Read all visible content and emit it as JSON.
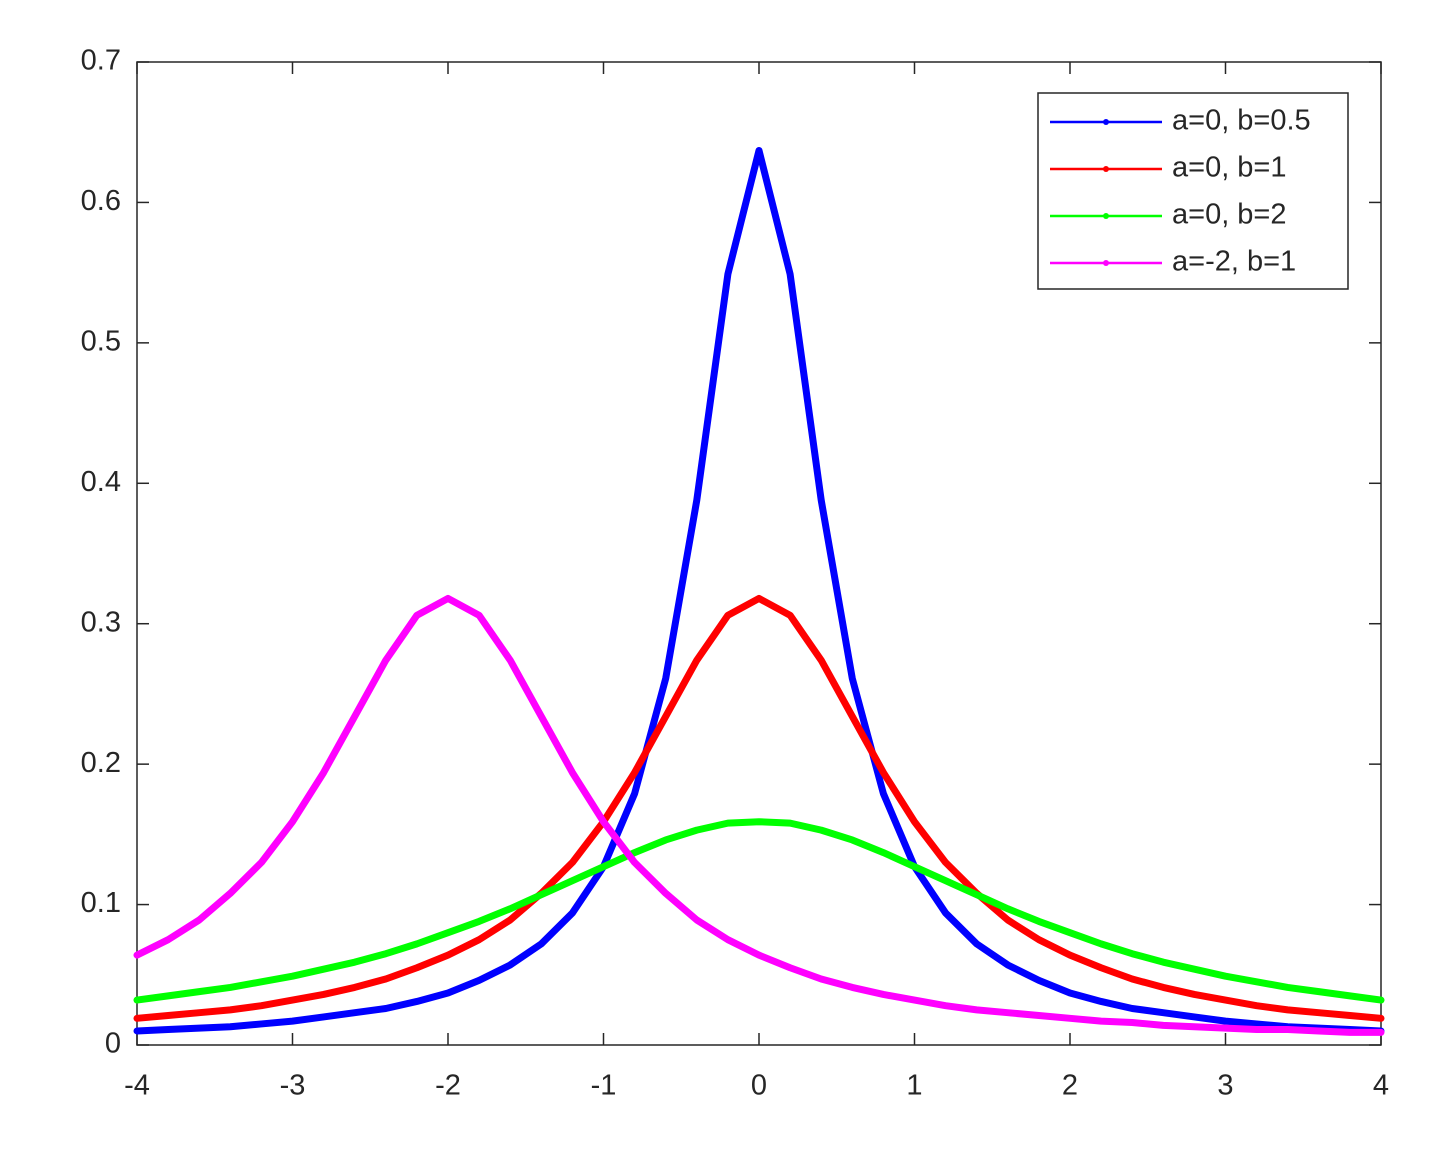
{
  "chart_data": {
    "type": "line",
    "x": [
      -4,
      -3.8,
      -3.6,
      -3.4,
      -3.2,
      -3,
      -2.8,
      -2.6,
      -2.4,
      -2.2,
      -2,
      -1.8,
      -1.6,
      -1.4,
      -1.2,
      -1,
      -0.8,
      -0.6,
      -0.4,
      -0.2,
      0,
      0.2,
      0.4,
      0.6,
      0.8,
      1,
      1.2,
      1.4,
      1.6,
      1.8,
      2,
      2.2,
      2.4,
      2.6,
      2.8,
      3,
      3.2,
      3.4,
      3.6,
      3.8,
      4
    ],
    "series": [
      {
        "name": "a=0, b=0.5",
        "color": "#0000ff",
        "values": [
          0.01,
          0.011,
          0.012,
          0.013,
          0.015,
          0.017,
          0.02,
          0.023,
          0.026,
          0.031,
          0.037,
          0.046,
          0.057,
          0.072,
          0.094,
          0.127,
          0.179,
          0.261,
          0.388,
          0.549,
          0.637,
          0.549,
          0.388,
          0.261,
          0.179,
          0.127,
          0.094,
          0.072,
          0.057,
          0.046,
          0.037,
          0.031,
          0.026,
          0.023,
          0.02,
          0.017,
          0.015,
          0.013,
          0.012,
          0.011,
          0.01
        ]
      },
      {
        "name": "a=0, b=1",
        "color": "#ff0000",
        "values": [
          0.019,
          0.021,
          0.023,
          0.025,
          0.028,
          0.032,
          0.036,
          0.041,
          0.047,
          0.055,
          0.064,
          0.075,
          0.089,
          0.108,
          0.13,
          0.159,
          0.194,
          0.234,
          0.274,
          0.306,
          0.318,
          0.306,
          0.274,
          0.234,
          0.194,
          0.159,
          0.13,
          0.108,
          0.089,
          0.075,
          0.064,
          0.055,
          0.047,
          0.041,
          0.036,
          0.032,
          0.028,
          0.025,
          0.023,
          0.021,
          0.019
        ]
      },
      {
        "name": "a=0, b=2",
        "color": "#00ff00",
        "values": [
          0.032,
          0.035,
          0.038,
          0.041,
          0.045,
          0.049,
          0.054,
          0.059,
          0.065,
          0.072,
          0.08,
          0.088,
          0.097,
          0.107,
          0.117,
          0.127,
          0.137,
          0.146,
          0.153,
          0.158,
          0.159,
          0.158,
          0.153,
          0.146,
          0.137,
          0.127,
          0.117,
          0.107,
          0.097,
          0.088,
          0.08,
          0.072,
          0.065,
          0.059,
          0.054,
          0.049,
          0.045,
          0.041,
          0.038,
          0.035,
          0.032
        ]
      },
      {
        "name": "a=-2, b=1",
        "color": "#ff00ff",
        "values": [
          0.064,
          0.075,
          0.089,
          0.108,
          0.13,
          0.159,
          0.194,
          0.234,
          0.274,
          0.306,
          0.318,
          0.306,
          0.274,
          0.234,
          0.194,
          0.159,
          0.13,
          0.108,
          0.089,
          0.075,
          0.064,
          0.055,
          0.047,
          0.041,
          0.036,
          0.032,
          0.028,
          0.025,
          0.023,
          0.021,
          0.019,
          0.017,
          0.016,
          0.014,
          0.013,
          0.012,
          0.011,
          0.011,
          0.01,
          0.009,
          0.009
        ]
      }
    ],
    "xlim": [
      -4,
      4
    ],
    "xticks": [
      -4,
      -3,
      -2,
      -1,
      0,
      1,
      2,
      3,
      4
    ],
    "ylim": [
      0,
      0.7
    ],
    "yticks": [
      0,
      0.1,
      0.2,
      0.3,
      0.4,
      0.5,
      0.6,
      0.7
    ],
    "legend": "upper right"
  }
}
